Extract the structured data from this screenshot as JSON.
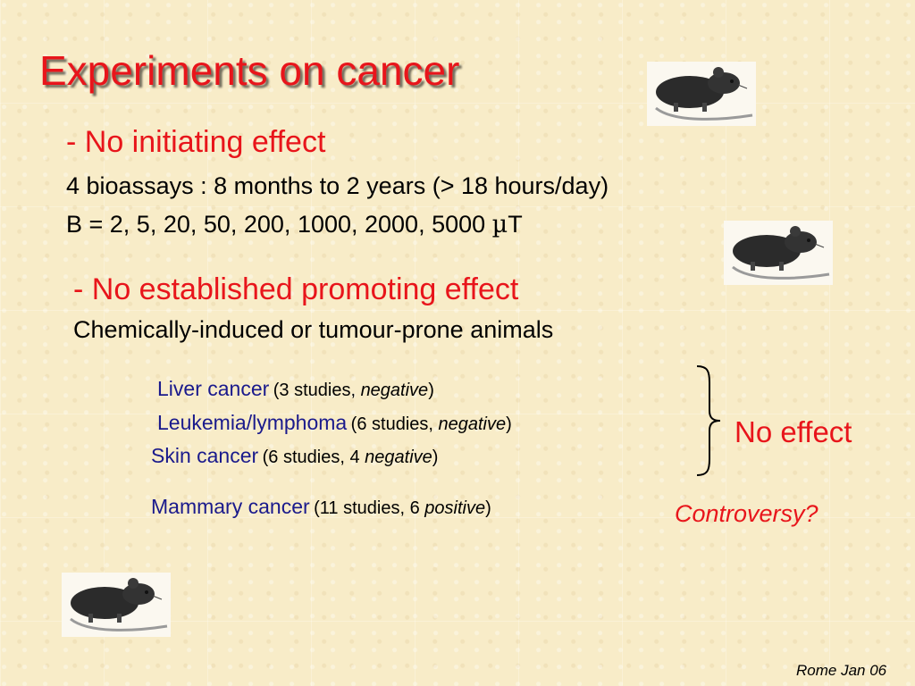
{
  "title": "Experiments on cancer",
  "initiating": {
    "heading": "- No initiating effect",
    "line1": "4 bioassays : 8 months to 2 years (> 18 hours/day)",
    "line2_prefix": "B = 2, 5, 20, 50, 200, 1000, 2000, 5000 ",
    "line2_unit_mu": "µ",
    "line2_unit_t": "T"
  },
  "promoting": {
    "heading": "- No established promoting effect",
    "subheading": "Chemically-induced or tumour-prone animals"
  },
  "studies": [
    {
      "name": "Liver cancer",
      "detail_prefix": "(3 studies, ",
      "detail_italic": "negative",
      "detail_suffix": ")"
    },
    {
      "name": "Leukemia/lymphoma",
      "detail_prefix": "(6 studies, ",
      "detail_italic": "negative",
      "detail_suffix": ")"
    },
    {
      "name": "Skin cancer",
      "detail_prefix": "(6 studies, 4 ",
      "detail_italic": "negative",
      "detail_suffix": ")"
    },
    {
      "name": "Mammary cancer",
      "detail_prefix": "(11 studies, 6 ",
      "detail_italic": "positive",
      "detail_suffix": ")"
    }
  ],
  "conclusion": "No effect",
  "controversy": "Controversy?",
  "footer": "Rome Jan 06",
  "images": [
    "rat-image",
    "rat-image",
    "rat-image"
  ],
  "colors": {
    "title_red": "#e8151b",
    "study_blue": "#1a1a8c",
    "background": "#f8ecc8"
  }
}
